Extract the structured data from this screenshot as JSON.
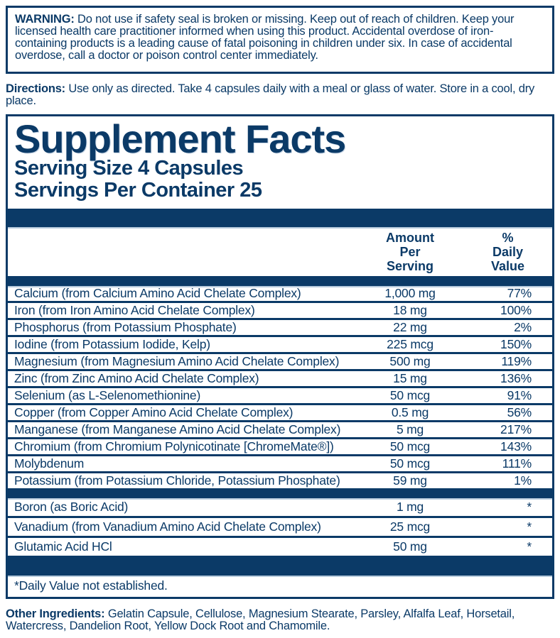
{
  "colors": {
    "navy": "#0b3a67",
    "light_blue": "#b8cbdd",
    "background": "#ffffff"
  },
  "warning": {
    "label": "WARNING:",
    "text": "Do not use if safety seal is broken or missing. Keep out of reach of children. Keep your licensed health care practitioner informed when using this product. Accidental overdose of iron-containing products is a leading cause of fatal poisoning in children under six. In case of accidental overdose, call a doctor or poison control center immediately."
  },
  "directions": {
    "label": "Directions:",
    "text": "Use only as directed. Take 4 capsules daily with a meal or glass of water. Store in a cool, dry place."
  },
  "supplement_facts": {
    "title": "Supplement Facts",
    "serving_size": "Serving Size 4 Capsules",
    "servings_per_container": "Servings Per Container 25",
    "columns": {
      "amount": "Amount Per Serving",
      "daily_value": "% Daily Value"
    },
    "rows": [
      {
        "name": "Calcium (from Calcium Amino Acid Chelate Complex)",
        "amount": "1,000 mg",
        "dv": "77%"
      },
      {
        "name": "Iron (from Iron Amino Acid Chelate Complex)",
        "amount": "18 mg",
        "dv": "100%"
      },
      {
        "name": "Phosphorus (from Potassium Phosphate)",
        "amount": "22 mg",
        "dv": "2%"
      },
      {
        "name": "Iodine (from Potassium Iodide, Kelp)",
        "amount": "225 mcg",
        "dv": "150%"
      },
      {
        "name": "Magnesium (from Magnesium Amino Acid Chelate Complex)",
        "amount": "500 mg",
        "dv": "119%"
      },
      {
        "name": "Zinc (from Zinc Amino Acid Chelate Complex)",
        "amount": "15 mg",
        "dv": "136%"
      },
      {
        "name": "Selenium (as L-Selenomethionine)",
        "amount": "50 mcg",
        "dv": "91%"
      },
      {
        "name": "Copper (from Copper Amino Acid Chelate Complex)",
        "amount": "0.5 mg",
        "dv": "56%"
      },
      {
        "name": "Manganese (from Manganese Amino Acid Chelate Complex)",
        "amount": "5 mg",
        "dv": "217%"
      },
      {
        "name": "Chromium (from Chromium Polynicotinate [ChromeMate®])",
        "amount": "50 mcg",
        "dv": "143%"
      },
      {
        "name": "Molybdenum",
        "amount": "50 mcg",
        "dv": "111%"
      },
      {
        "name": "Potassium (from Potassium Chloride, Potassium Phosphate)",
        "amount": "59 mg",
        "dv": "1%"
      }
    ],
    "rows_no_dv": [
      {
        "name": "Boron (as Boric Acid)",
        "amount": "1 mg",
        "dv": "*"
      },
      {
        "name": "Vanadium (from Vanadium Amino Acid Chelate Complex)",
        "amount": "25 mcg",
        "dv": "*"
      },
      {
        "name": "Glutamic Acid HCl",
        "amount": "50 mg",
        "dv": "*"
      }
    ],
    "footnote": "*Daily Value not established."
  },
  "other_ingredients": {
    "label": "Other Ingredients:",
    "text": "Gelatin Capsule, Cellulose, Magnesium Stearate, Parsley, Alfalfa Leaf, Horsetail, Watercress, Dandelion Root, Yellow Dock Root and Chamomile."
  }
}
